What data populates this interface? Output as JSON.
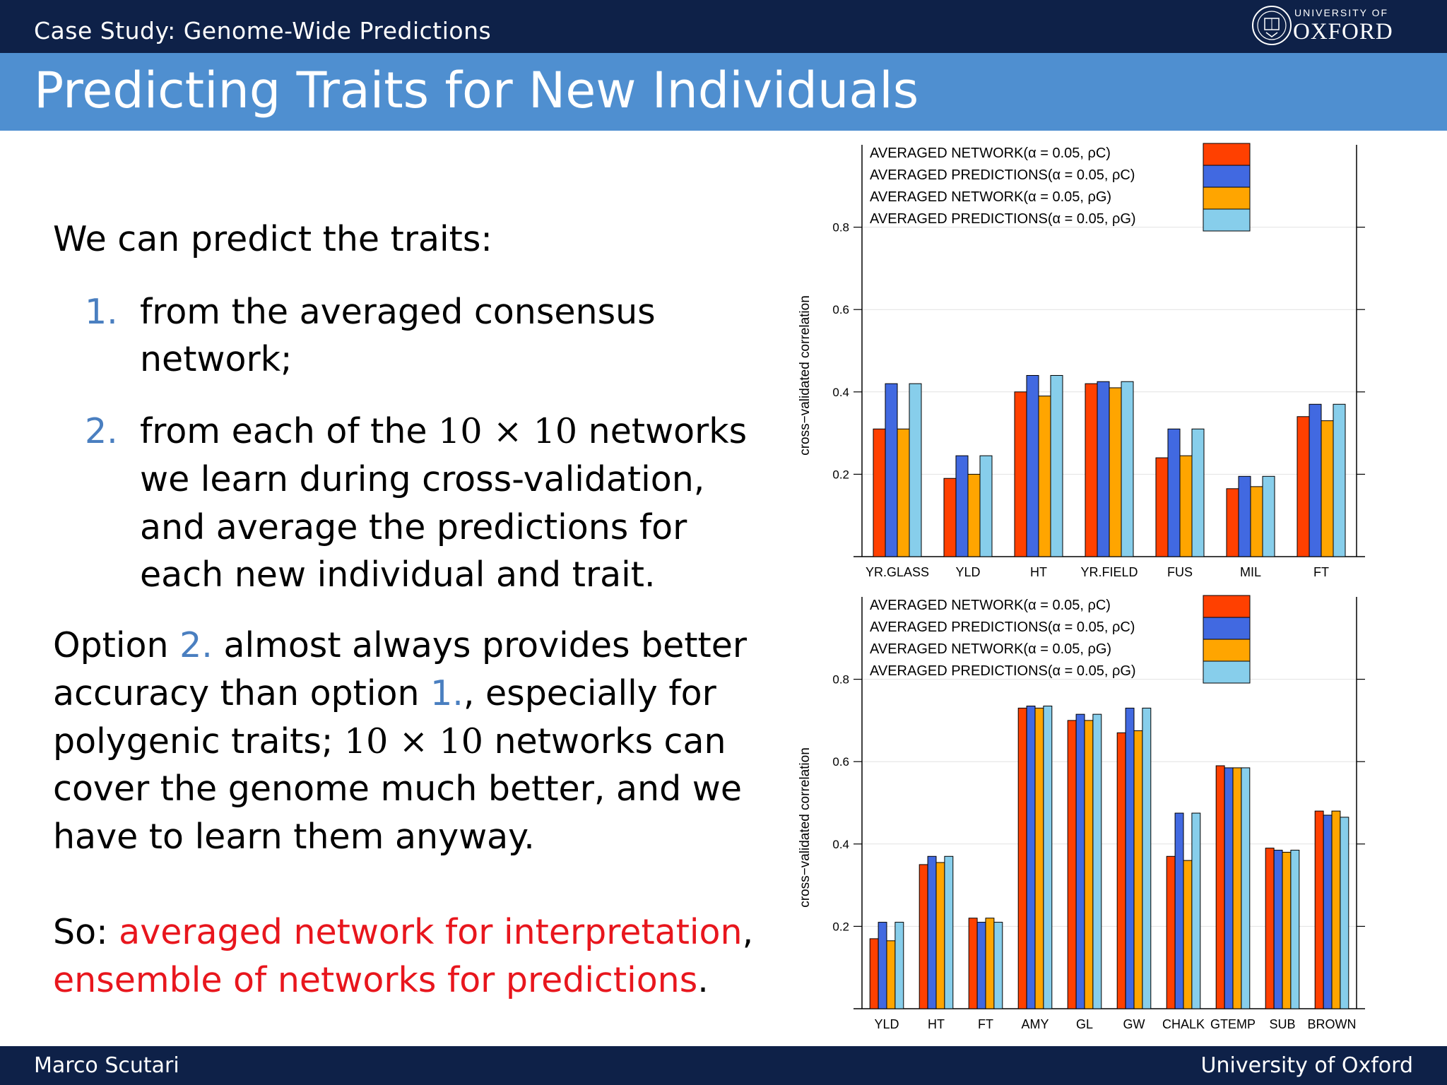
{
  "header": {
    "section": "Case Study:  Genome-Wide Predictions",
    "logo_small": "UNIVERSITY OF",
    "logo_big": "OXFORD"
  },
  "title": "Predicting Traits for New Individuals",
  "body": {
    "intro": "We can predict the traits:",
    "item1_num": "1.",
    "item1_line1": "from the averaged consensus",
    "item1_line2": "network;",
    "item2_num": "2.",
    "item2_line1_a": "from each of the ",
    "item2_math": "10 × 10",
    "item2_line1_b": " networks",
    "item2_line2": "we learn during cross-validation,",
    "item2_line3": "and average the predictions for",
    "item2_line4": "each new individual and trait.",
    "para_line1_a": "Option ",
    "para_opt2": "2.",
    "para_line1_b": " almost always provides better",
    "para_line2_a": "accuracy than option ",
    "para_opt1": "1.",
    "para_line2_b": ", especially for",
    "para_line3_a": "polygenic traits; ",
    "para_math": "10 × 10",
    "para_line3_b": " networks can",
    "para_line4": "cover the genome much better, and we",
    "para_line5": "have to learn them anyway.",
    "so_a": "So: ",
    "so_red1": "averaged network for interpretation",
    "so_b": ",",
    "so_red2": "ensemble of networks for predictions",
    "so_c": "."
  },
  "footer": {
    "left": "Marco Scutari",
    "right": "University of Oxford"
  },
  "chart_data": [
    {
      "type": "bar",
      "ylabel": "cross−validated correlation",
      "ylim": [
        0,
        1.0
      ],
      "yticks": [
        "0.2",
        "0.4",
        "0.6",
        "0.8"
      ],
      "grid": true,
      "legend_placement": "top-right",
      "categories": [
        "YR.GLASS",
        "YLD",
        "HT",
        "YR.FIELD",
        "FUS",
        "MIL",
        "FT"
      ],
      "series": [
        {
          "name": "AVERAGED NETWORK(α = 0.05, ρC)",
          "color": "#ff4000",
          "values": [
            0.31,
            0.19,
            0.4,
            0.42,
            0.24,
            0.165,
            0.34
          ]
        },
        {
          "name": "AVERAGED PREDICTIONS(α = 0.05, ρC)",
          "color": "#4169e1",
          "values": [
            0.42,
            0.245,
            0.44,
            0.425,
            0.31,
            0.195,
            0.37
          ]
        },
        {
          "name": "AVERAGED NETWORK(α = 0.05, ρG)",
          "color": "#ffa500",
          "values": [
            0.31,
            0.2,
            0.39,
            0.41,
            0.245,
            0.17,
            0.33
          ]
        },
        {
          "name": "AVERAGED PREDICTIONS(α = 0.05, ρG)",
          "color": "#87ceeb",
          "values": [
            0.42,
            0.245,
            0.44,
            0.425,
            0.31,
            0.195,
            0.37
          ]
        }
      ]
    },
    {
      "type": "bar",
      "ylabel": "cross−validated correlation",
      "ylim": [
        0,
        1.0
      ],
      "yticks": [
        "0.2",
        "0.4",
        "0.6",
        "0.8"
      ],
      "grid": true,
      "legend_placement": "top-right",
      "categories": [
        "YLD",
        "HT",
        "FT",
        "AMY",
        "GL",
        "GW",
        "CHALK",
        "GTEMP",
        "SUB",
        "BROWN"
      ],
      "series": [
        {
          "name": "AVERAGED NETWORK(α = 0.05, ρC)",
          "color": "#ff4000",
          "values": [
            0.17,
            0.35,
            0.22,
            0.73,
            0.7,
            0.67,
            0.37,
            0.59,
            0.39,
            0.48
          ]
        },
        {
          "name": "AVERAGED PREDICTIONS(α = 0.05, ρC)",
          "color": "#4169e1",
          "values": [
            0.21,
            0.37,
            0.21,
            0.735,
            0.715,
            0.73,
            0.475,
            0.585,
            0.385,
            0.47
          ]
        },
        {
          "name": "AVERAGED NETWORK(α = 0.05, ρG)",
          "color": "#ffa500",
          "values": [
            0.165,
            0.355,
            0.22,
            0.73,
            0.7,
            0.675,
            0.36,
            0.585,
            0.38,
            0.48
          ]
        },
        {
          "name": "AVERAGED PREDICTIONS(α = 0.05, ρG)",
          "color": "#87ceeb",
          "values": [
            0.21,
            0.37,
            0.21,
            0.735,
            0.715,
            0.73,
            0.475,
            0.585,
            0.385,
            0.465
          ]
        }
      ]
    }
  ]
}
